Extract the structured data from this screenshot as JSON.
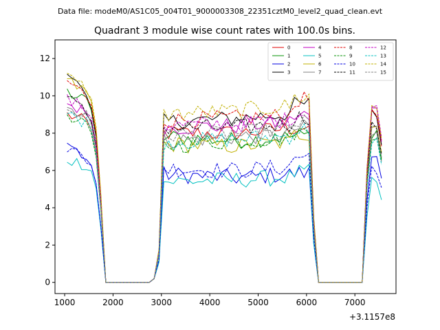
{
  "header": "Data file: modeM0/AS1C05_004T01_9000003308_22351cztM0_level2_quad_clean.evt",
  "chart_data": {
    "type": "line",
    "title": "Quadrant 3 module wise count rates with 100.0s bins.",
    "xlabel": "",
    "ylabel": "",
    "x_offset_label": "+3.1157e8",
    "xlim": [
      800,
      7850
    ],
    "ylim": [
      -0.6,
      13.0
    ],
    "x_ticks": [
      1000,
      2000,
      3000,
      4000,
      5000,
      6000,
      7000
    ],
    "y_ticks": [
      0,
      2,
      4,
      6,
      8,
      10,
      12
    ],
    "legend_position": "upper right",
    "grid": false,
    "segments": [
      {
        "start": 1050,
        "n": 7
      },
      {
        "start": 1750,
        "n": 11
      },
      {
        "start": 2850,
        "n": 34
      },
      {
        "start": 6250,
        "n": 10
      },
      {
        "start": 7250,
        "n": 4
      }
    ],
    "series": [
      {
        "name": "0",
        "color": "#e00000",
        "dash": false,
        "levels": [
          9.0,
          8.6,
          8.0,
          8.0,
          8.4,
          8.4,
          8.9
        ]
      },
      {
        "name": "1",
        "color": "#009000",
        "dash": false,
        "levels": [
          10.2,
          9.7,
          7.8,
          7.6,
          7.9,
          7.9,
          8.1
        ]
      },
      {
        "name": "2",
        "color": "#0000e0",
        "dash": false,
        "levels": [
          7.5,
          6.6,
          5.8,
          5.6,
          5.9,
          5.9,
          6.8
        ]
      },
      {
        "name": "3",
        "color": "#000000",
        "dash": false,
        "levels": [
          11.5,
          9.8,
          8.6,
          8.8,
          9.2,
          9.6,
          9.0
        ]
      },
      {
        "name": "4",
        "color": "#c000c0",
        "dash": false,
        "levels": [
          9.6,
          9.1,
          8.3,
          8.4,
          8.7,
          9.0,
          9.2
        ]
      },
      {
        "name": "5",
        "color": "#00c0c0",
        "dash": false,
        "levels": [
          6.6,
          6.3,
          5.4,
          5.5,
          5.7,
          5.9,
          5.4
        ]
      },
      {
        "name": "6",
        "color": "#c0b000",
        "dash": false,
        "levels": [
          10.8,
          10.2,
          7.4,
          7.3,
          7.6,
          8.0,
          8.5
        ]
      },
      {
        "name": "7",
        "color": "#808080",
        "dash": false,
        "levels": [
          9.4,
          9.0,
          7.6,
          7.8,
          8.0,
          8.3,
          7.9
        ]
      },
      {
        "name": "8",
        "color": "#e00000",
        "dash": true,
        "levels": [
          10.8,
          10.0,
          8.7,
          8.8,
          9.0,
          9.8,
          9.3
        ]
      },
      {
        "name": "9",
        "color": "#009000",
        "dash": true,
        "levels": [
          8.7,
          8.4,
          7.3,
          7.6,
          7.8,
          8.1,
          8.0
        ]
      },
      {
        "name": "10",
        "color": "#0000e0",
        "dash": true,
        "levels": [
          7.2,
          6.6,
          6.1,
          6.0,
          6.3,
          6.8,
          6.2
        ]
      },
      {
        "name": "11",
        "color": "#000000",
        "dash": true,
        "levels": [
          9.9,
          9.1,
          8.3,
          8.3,
          8.6,
          8.9,
          8.4
        ]
      },
      {
        "name": "12",
        "color": "#c000c0",
        "dash": true,
        "levels": [
          9.8,
          9.3,
          8.4,
          8.5,
          8.8,
          9.1,
          9.5
        ]
      },
      {
        "name": "13",
        "color": "#00c0c0",
        "dash": true,
        "levels": [
          9.0,
          8.6,
          7.5,
          7.7,
          7.9,
          8.2,
          7.7
        ]
      },
      {
        "name": "14",
        "color": "#c0b000",
        "dash": true,
        "levels": [
          11.0,
          10.4,
          9.0,
          9.2,
          9.6,
          10.0,
          9.4
        ]
      },
      {
        "name": "15",
        "color": "#808080",
        "dash": true,
        "levels": [
          9.3,
          8.9,
          7.9,
          8.0,
          8.3,
          8.6,
          8.2
        ]
      }
    ]
  }
}
